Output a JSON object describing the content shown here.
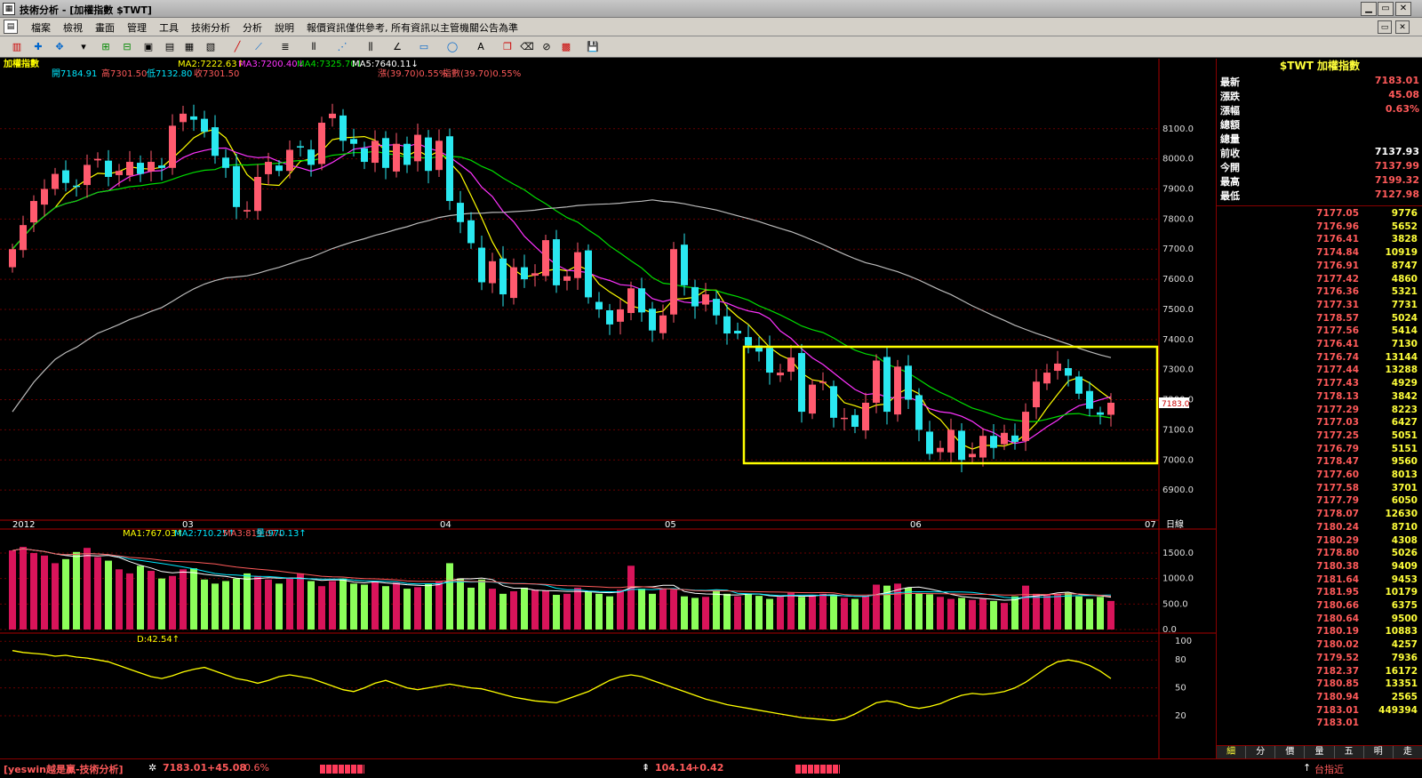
{
  "window": {
    "title": "技術分析 - [加權指數 $TWT]",
    "app_icon": "chart-app-icon"
  },
  "menu": [
    "檔案",
    "檢視",
    "畫面",
    "管理",
    "工具",
    "技術分析",
    "分析",
    "說明",
    "報價資訊僅供參考, 所有資訊以主管機關公告為準"
  ],
  "indicators": {
    "symbol": "加權指數",
    "ma_line": [
      "MA2:7222.63↑",
      "MA3:7200.40↓",
      "MA4:7325.70↓",
      "MA5:7640.11↓"
    ],
    "ohlc_line": [
      "開7184.91",
      "高7301.50",
      "低7132.80",
      "收7301.50",
      "漲(39.70)0.55%",
      "指數(39.70)0.55%"
    ],
    "vol_line": [
      "MA1:767.03↑",
      "MA2:710.25↑",
      "MA3:819.07↓",
      "量:970.13↑"
    ],
    "kd_line": "D:42.54↑"
  },
  "colors": {
    "up": "#ff5a6e",
    "down": "#2ae8f0",
    "ma2": "#ffff00",
    "ma3": "#ff33ff",
    "ma4": "#00dd00",
    "ma5": "#bbbbbb",
    "vol_up": "#d8145a",
    "vol_down": "#8cff5a",
    "highlight": "#ffff00"
  },
  "chart_data": {
    "type": "candlestick",
    "ylim": [
      6800,
      8250
    ],
    "price_ticks": [
      "8100.0",
      "8000.0",
      "7900.0",
      "7800.0",
      "7700.0",
      "7600.0",
      "7500.0",
      "7400.0",
      "7300.0",
      "7200.0",
      "7100.0",
      "7000.0",
      "6900.0"
    ],
    "x_labels": [
      "2012",
      "03",
      "04",
      "05",
      "06",
      "07",
      "日線"
    ],
    "current_price_tag": "7183.0",
    "closes": [
      7700,
      7780,
      7860,
      7900,
      7950,
      7920,
      7910,
      7980,
      8000,
      7940,
      7960,
      7990,
      7950,
      7990,
      7970,
      8110,
      8150,
      8130,
      8090,
      8010,
      7970,
      7840,
      7830,
      7940,
      7990,
      7960,
      8030,
      8040,
      7980,
      8120,
      8150,
      8060,
      8050,
      7990,
      8060,
      7970,
      8050,
      7980,
      8080,
      7960,
      8060,
      7860,
      7790,
      7720,
      7590,
      7660,
      7550,
      7640,
      7600,
      7620,
      7730,
      7580,
      7610,
      7690,
      7540,
      7500,
      7450,
      7500,
      7570,
      7490,
      7430,
      7480,
      7700,
      7580,
      7510,
      7550,
      7480,
      7420,
      7420,
      7380,
      7360,
      7290,
      7290,
      7340,
      7160,
      7250,
      7260,
      7140,
      7140,
      7110,
      7190,
      7330,
      7160,
      7310,
      7200,
      7100,
      7020,
      7040,
      7100,
      7000,
      7020,
      7080,
      7040,
      7090,
      7060,
      7160,
      7260,
      7290,
      7320,
      7280,
      7220,
      7170,
      7150,
      7190
    ],
    "volume_ylim": [
      0,
      1900
    ],
    "volume_ticks": [
      "1500.0",
      "1000.0",
      "500.0",
      "0.0"
    ],
    "volumes": [
      1550,
      1620,
      1500,
      1450,
      1300,
      1380,
      1520,
      1600,
      1420,
      1350,
      1180,
      1100,
      1250,
      1150,
      1000,
      1050,
      1180,
      1200,
      980,
      900,
      950,
      1000,
      1100,
      1050,
      980,
      900,
      1020,
      1100,
      950,
      850,
      950,
      1000,
      900,
      880,
      940,
      850,
      920,
      800,
      830,
      900,
      950,
      1300,
      1000,
      820,
      980,
      800,
      700,
      750,
      820,
      780,
      760,
      680,
      700,
      820,
      740,
      700,
      650,
      780,
      1250,
      800,
      700,
      800,
      780,
      650,
      620,
      640,
      780,
      700,
      650,
      700,
      660,
      600,
      640,
      720,
      640,
      680,
      700,
      660,
      620,
      600,
      660,
      880,
      860,
      900,
      820,
      700,
      690,
      640,
      600,
      620,
      580,
      600,
      560,
      520,
      650,
      860,
      700,
      680,
      700,
      720,
      650,
      600,
      640,
      560
    ],
    "kd_ticks": [
      "100",
      "80",
      "50",
      "20"
    ],
    "kd_ylim": [
      0,
      105
    ],
    "kd_d": [
      90,
      88,
      87,
      86,
      84,
      85,
      83,
      82,
      80,
      78,
      74,
      70,
      66,
      62,
      60,
      63,
      67,
      70,
      72,
      68,
      64,
      60,
      58,
      55,
      58,
      62,
      64,
      62,
      60,
      56,
      52,
      48,
      46,
      50,
      55,
      58,
      54,
      50,
      48,
      50,
      52,
      54,
      52,
      50,
      49,
      46,
      43,
      40,
      38,
      36,
      35,
      34,
      38,
      42,
      46,
      52,
      58,
      62,
      64,
      62,
      58,
      54,
      50,
      46,
      42,
      38,
      35,
      32,
      30,
      28,
      26,
      24,
      22,
      20,
      18,
      17,
      16,
      15,
      17,
      22,
      28,
      34,
      36,
      34,
      30,
      28,
      30,
      33,
      38,
      42,
      44,
      43,
      44,
      46,
      50,
      56,
      64,
      72,
      78,
      80,
      78,
      74,
      68,
      60
    ]
  },
  "quote": {
    "header": "$TWT 加權指數",
    "rows": [
      {
        "label": "最新",
        "value": "7183.01"
      },
      {
        "label": "漲跌",
        "value": "45.08"
      },
      {
        "label": "漲幅",
        "value": "0.63%"
      },
      {
        "label": "總額",
        "value": ""
      },
      {
        "label": "總量",
        "value": ""
      },
      {
        "label": "前收",
        "value": "7137.93"
      },
      {
        "label": "今開",
        "value": "7137.99"
      },
      {
        "label": "最高",
        "value": "7199.32"
      },
      {
        "label": "最低",
        "value": "7127.98"
      }
    ]
  },
  "ticks": [
    {
      "price": "7177.05",
      "volume": "9776"
    },
    {
      "price": "7176.96",
      "volume": "5652"
    },
    {
      "price": "7176.41",
      "volume": "3828"
    },
    {
      "price": "7174.84",
      "volume": "10919"
    },
    {
      "price": "7176.91",
      "volume": "8747"
    },
    {
      "price": "7177.42",
      "volume": "4860"
    },
    {
      "price": "7176.36",
      "volume": "5321"
    },
    {
      "price": "7177.31",
      "volume": "7731"
    },
    {
      "price": "7178.57",
      "volume": "5024"
    },
    {
      "price": "7177.56",
      "volume": "5414"
    },
    {
      "price": "7176.41",
      "volume": "7130"
    },
    {
      "price": "7176.74",
      "volume": "13144"
    },
    {
      "price": "7177.44",
      "volume": "13288"
    },
    {
      "price": "7177.43",
      "volume": "4929"
    },
    {
      "price": "7178.13",
      "volume": "3842"
    },
    {
      "price": "7177.29",
      "volume": "8223"
    },
    {
      "price": "7177.03",
      "volume": "6427"
    },
    {
      "price": "7177.25",
      "volume": "5051"
    },
    {
      "price": "7176.79",
      "volume": "5151"
    },
    {
      "price": "7178.47",
      "volume": "9560"
    },
    {
      "price": "7177.60",
      "volume": "8013"
    },
    {
      "price": "7177.58",
      "volume": "3701"
    },
    {
      "price": "7177.79",
      "volume": "6050"
    },
    {
      "price": "7178.07",
      "volume": "12630"
    },
    {
      "price": "7180.24",
      "volume": "8710"
    },
    {
      "price": "7180.29",
      "volume": "4308"
    },
    {
      "price": "7178.80",
      "volume": "5026"
    },
    {
      "price": "7180.38",
      "volume": "9409"
    },
    {
      "price": "7181.64",
      "volume": "9453"
    },
    {
      "price": "7181.95",
      "volume": "10179"
    },
    {
      "price": "7180.66",
      "volume": "6375"
    },
    {
      "price": "7180.64",
      "volume": "9500"
    },
    {
      "price": "7180.19",
      "volume": "10883"
    },
    {
      "price": "7180.02",
      "volume": "4257"
    },
    {
      "price": "7179.52",
      "volume": "7936"
    },
    {
      "price": "7182.37",
      "volume": "16172"
    },
    {
      "price": "7180.85",
      "volume": "13351"
    },
    {
      "price": "7180.94",
      "volume": "2565"
    },
    {
      "price": "7183.01",
      "volume": "449394"
    },
    {
      "price": "7183.01",
      "volume": ""
    }
  ],
  "side_tabs": [
    "細",
    "分",
    "價",
    "量",
    "五",
    "明",
    "走"
  ],
  "status": {
    "brand": "[yeswin越是贏-技術分析]",
    "index": "7183.01",
    "change": "+45.08",
    "pct": "0.6%",
    "otc": "104.14",
    "otc_change": "+0.42",
    "right_label": "台指近"
  }
}
